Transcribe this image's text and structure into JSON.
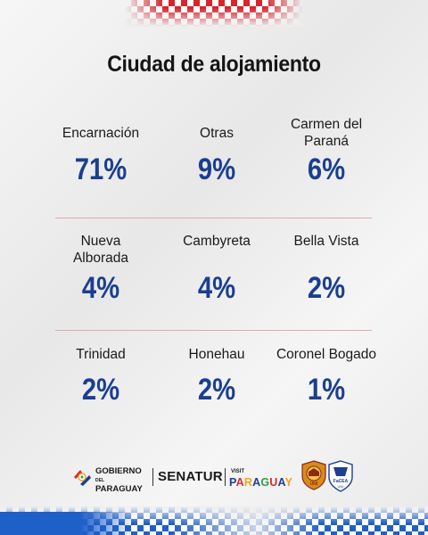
{
  "title": "Ciudad de alojamiento",
  "cities": [
    {
      "name": "Encarnación",
      "percent": "71%"
    },
    {
      "name": "Otras",
      "percent": "9%"
    },
    {
      "name": "Carmen del Paraná",
      "percent": "6%"
    },
    {
      "name": "Nueva Alborada",
      "percent": "4%"
    },
    {
      "name": "Cambyreta",
      "percent": "4%"
    },
    {
      "name": "Bella Vista",
      "percent": "2%"
    },
    {
      "name": "Trinidad",
      "percent": "2%"
    },
    {
      "name": "Honehau",
      "percent": "2%"
    },
    {
      "name": "Coronel Bogado",
      "percent": "1%"
    }
  ],
  "footer": {
    "gobierno_line1": "GOBIERNO",
    "gobierno_del": "DEL",
    "gobierno_line2": "PARAGUAY",
    "senatur": "SENATUR",
    "visit": "VISIT",
    "paraguay_letters": [
      "P",
      "A",
      "R",
      "A",
      "G",
      "U",
      "A",
      "Y"
    ],
    "seal1_text": "UNI",
    "seal2_text": "FaCEA",
    "seal2_sub": "UNI"
  },
  "colors": {
    "value": "#1b3f8f",
    "divider": "#e6a9a6",
    "checker_top": "#d8242c",
    "checker_bottom": "#1f5fc8"
  }
}
